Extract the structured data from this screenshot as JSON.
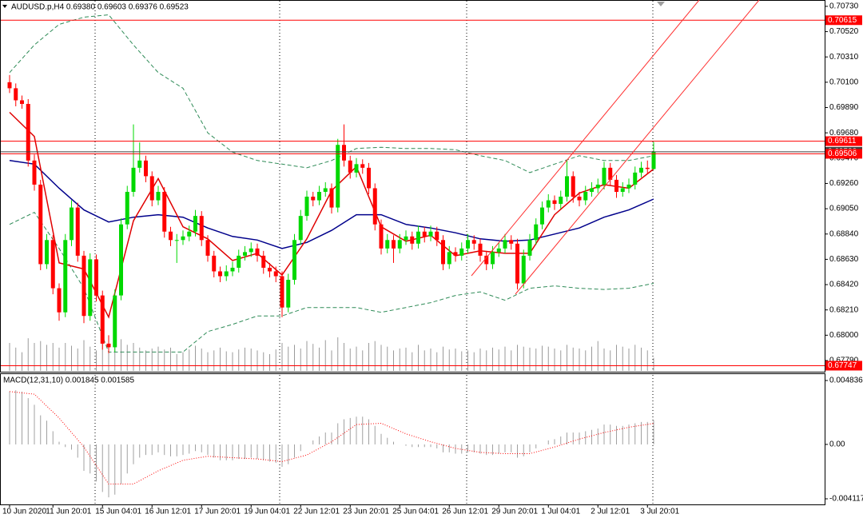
{
  "chart_data": {
    "type": "candlestick",
    "header": "AUDUSD.p,H4  0.69380 0.69603 0.69376 0.69523",
    "categories": [
      "10 Jun 2020",
      null,
      null,
      null,
      null,
      null,
      null,
      "11 Jun 20:01",
      null,
      null,
      null,
      null,
      null,
      null,
      null,
      "15 Jun 04:01",
      null,
      null,
      null,
      null,
      null,
      null,
      null,
      "16 Jun 12:01",
      null,
      null,
      null,
      null,
      null,
      null,
      null,
      "17 Jun 20:01",
      null,
      null,
      null,
      null,
      null,
      null,
      null,
      "19 Jun 04:01",
      null,
      null,
      null,
      null,
      null,
      null,
      null,
      "22 Jun 12:01",
      null,
      null,
      null,
      null,
      null,
      null,
      null,
      "23 Jun 20:01",
      null,
      null,
      null,
      null,
      null,
      null,
      null,
      "25 Jun 04:01",
      null,
      null,
      null,
      null,
      null,
      null,
      null,
      "26 Jun 12:01",
      null,
      null,
      null,
      null,
      null,
      null,
      null,
      "29 Jun 20:01",
      null,
      null,
      null,
      null,
      null,
      null,
      null,
      "1 Jul 04:01",
      null,
      null,
      null,
      null,
      null,
      null,
      null,
      "2 Jul 12:01",
      null,
      null,
      null,
      null,
      null,
      null,
      null,
      "3 Jul 20:01",
      null
    ],
    "ohlc": [
      [
        0.701,
        0.7016,
        0.7001,
        0.7005
      ],
      [
        0.7005,
        0.7009,
        0.699,
        0.6995
      ],
      [
        0.6995,
        0.6999,
        0.6988,
        0.6992
      ],
      [
        0.6992,
        0.6996,
        0.694,
        0.6945
      ],
      [
        0.6945,
        0.695,
        0.692,
        0.6925
      ],
      [
        0.6925,
        0.6929,
        0.6854,
        0.6859
      ],
      [
        0.6859,
        0.6884,
        0.6855,
        0.6879
      ],
      [
        0.6879,
        0.6883,
        0.6834,
        0.6839
      ],
      [
        0.6839,
        0.6843,
        0.6812,
        0.6819
      ],
      [
        0.6819,
        0.6884,
        0.6815,
        0.6879
      ],
      [
        0.6879,
        0.6912,
        0.6874,
        0.6906
      ],
      [
        0.6906,
        0.691,
        0.6861,
        0.6866
      ],
      [
        0.6866,
        0.687,
        0.681,
        0.6816
      ],
      [
        0.6816,
        0.6868,
        0.6812,
        0.6863
      ],
      [
        0.6863,
        0.6867,
        0.6828,
        0.6833
      ],
      [
        0.6833,
        0.6837,
        0.6788,
        0.6793
      ],
      [
        0.6793,
        0.68,
        0.6785,
        0.679
      ],
      [
        0.679,
        0.6838,
        0.6786,
        0.6833
      ],
      [
        0.6833,
        0.6897,
        0.6829,
        0.6892
      ],
      [
        0.6892,
        0.6924,
        0.6888,
        0.6919
      ],
      [
        0.6919,
        0.6975,
        0.6915,
        0.6939
      ],
      [
        0.6939,
        0.696,
        0.6935,
        0.6945
      ],
      [
        0.6945,
        0.6949,
        0.6927,
        0.6932
      ],
      [
        0.6932,
        0.6936,
        0.6907,
        0.6912
      ],
      [
        0.6912,
        0.6924,
        0.6908,
        0.6919
      ],
      [
        0.6919,
        0.6923,
        0.6881,
        0.6886
      ],
      [
        0.6886,
        0.689,
        0.6874,
        0.6879
      ],
      [
        0.6879,
        0.6884,
        0.686,
        0.6879
      ],
      [
        0.6879,
        0.6887,
        0.6875,
        0.6882
      ],
      [
        0.6882,
        0.6891,
        0.6878,
        0.6886
      ],
      [
        0.6886,
        0.6904,
        0.6882,
        0.6899
      ],
      [
        0.6899,
        0.6903,
        0.6874,
        0.6879
      ],
      [
        0.6879,
        0.6883,
        0.6861,
        0.6866
      ],
      [
        0.6866,
        0.687,
        0.6848,
        0.6853
      ],
      [
        0.6853,
        0.6857,
        0.6844,
        0.6849
      ],
      [
        0.6849,
        0.6858,
        0.6845,
        0.6853
      ],
      [
        0.6853,
        0.6861,
        0.6849,
        0.6856
      ],
      [
        0.6856,
        0.6871,
        0.6852,
        0.6866
      ],
      [
        0.6866,
        0.6874,
        0.6862,
        0.6869
      ],
      [
        0.6869,
        0.6877,
        0.6865,
        0.6872
      ],
      [
        0.6872,
        0.6876,
        0.6861,
        0.6866
      ],
      [
        0.6866,
        0.687,
        0.6851,
        0.6856
      ],
      [
        0.6856,
        0.686,
        0.6848,
        0.6853
      ],
      [
        0.6853,
        0.6857,
        0.6844,
        0.6849
      ],
      [
        0.6849,
        0.6853,
        0.6815,
        0.6823
      ],
      [
        0.6823,
        0.6851,
        0.6819,
        0.6846
      ],
      [
        0.6846,
        0.6884,
        0.6842,
        0.6879
      ],
      [
        0.6879,
        0.6904,
        0.6875,
        0.6899
      ],
      [
        0.6899,
        0.692,
        0.6895,
        0.6915
      ],
      [
        0.6915,
        0.6919,
        0.6907,
        0.6912
      ],
      [
        0.6912,
        0.6924,
        0.6908,
        0.6919
      ],
      [
        0.6919,
        0.6927,
        0.6915,
        0.6922
      ],
      [
        0.6922,
        0.6926,
        0.6901,
        0.6906
      ],
      [
        0.6906,
        0.6963,
        0.6902,
        0.6958
      ],
      [
        0.6958,
        0.6975,
        0.694,
        0.6945
      ],
      [
        0.6945,
        0.6949,
        0.693,
        0.6935
      ],
      [
        0.6935,
        0.6947,
        0.6931,
        0.6942
      ],
      [
        0.6942,
        0.6946,
        0.6934,
        0.6939
      ],
      [
        0.6939,
        0.6943,
        0.6917,
        0.6922
      ],
      [
        0.6922,
        0.6926,
        0.6887,
        0.6892
      ],
      [
        0.6892,
        0.6896,
        0.6867,
        0.6872
      ],
      [
        0.6872,
        0.6884,
        0.6868,
        0.6879
      ],
      [
        0.6879,
        0.6883,
        0.686,
        0.6872
      ],
      [
        0.6872,
        0.6884,
        0.6868,
        0.6879
      ],
      [
        0.6879,
        0.6887,
        0.6875,
        0.6882
      ],
      [
        0.6882,
        0.6886,
        0.6871,
        0.6876
      ],
      [
        0.6876,
        0.6891,
        0.6872,
        0.6886
      ],
      [
        0.6886,
        0.689,
        0.6877,
        0.6882
      ],
      [
        0.6882,
        0.6891,
        0.6878,
        0.6886
      ],
      [
        0.6886,
        0.689,
        0.6874,
        0.6879
      ],
      [
        0.6879,
        0.6883,
        0.6854,
        0.6859
      ],
      [
        0.6859,
        0.6874,
        0.6855,
        0.6869
      ],
      [
        0.6869,
        0.6873,
        0.6861,
        0.6866
      ],
      [
        0.6866,
        0.6877,
        0.6862,
        0.6872
      ],
      [
        0.6872,
        0.6884,
        0.6868,
        0.6879
      ],
      [
        0.6879,
        0.6883,
        0.6871,
        0.6876
      ],
      [
        0.6876,
        0.688,
        0.6861,
        0.6866
      ],
      [
        0.6866,
        0.687,
        0.6854,
        0.6859
      ],
      [
        0.6859,
        0.6874,
        0.6855,
        0.6869
      ],
      [
        0.6869,
        0.6877,
        0.6865,
        0.6872
      ],
      [
        0.6872,
        0.6884,
        0.6868,
        0.6879
      ],
      [
        0.6879,
        0.6883,
        0.6871,
        0.6876
      ],
      [
        0.6876,
        0.688,
        0.6838,
        0.6843
      ],
      [
        0.6843,
        0.6871,
        0.6839,
        0.6866
      ],
      [
        0.6866,
        0.6884,
        0.6862,
        0.6879
      ],
      [
        0.6879,
        0.6897,
        0.6875,
        0.6892
      ],
      [
        0.6892,
        0.6911,
        0.6888,
        0.6906
      ],
      [
        0.6906,
        0.6917,
        0.6902,
        0.6912
      ],
      [
        0.6912,
        0.6916,
        0.6904,
        0.6909
      ],
      [
        0.6909,
        0.692,
        0.6905,
        0.6915
      ],
      [
        0.6915,
        0.6945,
        0.6911,
        0.6932
      ],
      [
        0.6932,
        0.6936,
        0.691,
        0.6915
      ],
      [
        0.6915,
        0.6919,
        0.6907,
        0.6912
      ],
      [
        0.6912,
        0.6924,
        0.6908,
        0.6919
      ],
      [
        0.6919,
        0.6927,
        0.6915,
        0.6922
      ],
      [
        0.6922,
        0.693,
        0.6918,
        0.6925
      ],
      [
        0.6925,
        0.6944,
        0.6921,
        0.6939
      ],
      [
        0.6939,
        0.6943,
        0.6924,
        0.6929
      ],
      [
        0.6929,
        0.6933,
        0.6914,
        0.6919
      ],
      [
        0.6919,
        0.6927,
        0.6915,
        0.6922
      ],
      [
        0.6922,
        0.693,
        0.6918,
        0.6925
      ],
      [
        0.6925,
        0.694,
        0.6921,
        0.6935
      ],
      [
        0.6935,
        0.6944,
        0.6931,
        0.6939
      ],
      [
        0.6939,
        0.6945,
        0.6934,
        0.6938
      ],
      [
        0.6938,
        0.69603,
        0.69376,
        0.69523
      ]
    ],
    "up_color": "#00d800",
    "down_color": "#ff0000",
    "ylim": [
      0.67697,
      0.70776
    ],
    "yticks": [
      {
        "value": 0.7073,
        "label": "0.70730"
      },
      {
        "value": 0.7052,
        "label": "0.70520"
      },
      {
        "value": 0.7031,
        "label": "0.70310"
      },
      {
        "value": 0.701,
        "label": "0.70100"
      },
      {
        "value": 0.6989,
        "label": "0.69890"
      },
      {
        "value": 0.6968,
        "label": "0.69680"
      },
      {
        "value": 0.6947,
        "label": "0.69470"
      },
      {
        "value": 0.6926,
        "label": "0.69260"
      },
      {
        "value": 0.6905,
        "label": "0.69050"
      },
      {
        "value": 0.6884,
        "label": "0.68840"
      },
      {
        "value": 0.6863,
        "label": "0.68630"
      },
      {
        "value": 0.6842,
        "label": "0.68420"
      },
      {
        "value": 0.6821,
        "label": "0.68210"
      },
      {
        "value": 0.68,
        "label": "0.68000"
      },
      {
        "value": 0.6779,
        "label": "0.67790"
      }
    ],
    "price_levels": [
      {
        "value": 0.70615,
        "color": "#ff0000"
      },
      {
        "value": 0.69611,
        "color": "#ff0000"
      },
      {
        "value": 0.69523,
        "color": "#404040"
      },
      {
        "value": 0.69506,
        "color": "#ff0000"
      },
      {
        "value": 0.67747,
        "color": "#ff0000"
      }
    ],
    "overlay_x": [
      0,
      4,
      8,
      12,
      16,
      20,
      24,
      28,
      32,
      36,
      40,
      44,
      48,
      52,
      56,
      60,
      64,
      68,
      72,
      76,
      80,
      84,
      88,
      92,
      96,
      100,
      104
    ],
    "overlays": [
      {
        "color": "#2e8b57",
        "dash": true,
        "values": [
          0.7018,
          0.7041,
          0.7058,
          0.7064,
          0.7066,
          0.7041,
          0.7018,
          0.7005,
          0.6968,
          0.6952,
          0.6945,
          0.6942,
          0.6939,
          0.6945,
          0.6955,
          0.6956,
          0.6955,
          0.6955,
          0.6954,
          0.6949,
          0.6945,
          0.6935,
          0.6942,
          0.6949,
          0.6945,
          0.6945,
          0.6949
        ]
      },
      {
        "color": "#2e8b57",
        "dash": true,
        "values": [
          0.6892,
          0.6902,
          0.6872,
          0.6839,
          0.6786,
          0.6786,
          0.6786,
          0.6786,
          0.6803,
          0.6809,
          0.6816,
          0.6816,
          0.6823,
          0.6823,
          0.6823,
          0.6819,
          0.6823,
          0.6827,
          0.6833,
          0.6836,
          0.6829,
          0.6839,
          0.6841,
          0.6839,
          0.6838,
          0.6839,
          0.6843
        ]
      },
      {
        "color": "#00008b",
        "dash": false,
        "values": [
          0.6945,
          0.6942,
          0.6922,
          0.6904,
          0.6894,
          0.6898,
          0.69,
          0.6898,
          0.6889,
          0.6882,
          0.6879,
          0.6872,
          0.6877,
          0.6887,
          0.69,
          0.69,
          0.6892,
          0.6889,
          0.6885,
          0.688,
          0.6878,
          0.6879,
          0.6884,
          0.6889,
          0.6898,
          0.6904,
          0.6913
        ]
      },
      {
        "color": "#e00000",
        "dash": false,
        "values": [
          0.6985,
          0.6965,
          0.686,
          0.6855,
          0.6815,
          0.6895,
          0.693,
          0.689,
          0.688,
          0.6862,
          0.6868,
          0.685,
          0.688,
          0.692,
          0.694,
          0.689,
          0.6878,
          0.6883,
          0.6866,
          0.687,
          0.6868,
          0.6868,
          0.69,
          0.6918,
          0.6925,
          0.6922,
          0.6938
        ]
      }
    ],
    "volume": {
      "color": "#9a9a9a",
      "lim": [
        0,
        12
      ],
      "values": [
        3,
        2.5,
        2,
        3.5,
        3,
        3.2,
        2.8,
        3,
        2.5,
        3,
        2.7,
        2.4,
        3.3,
        2.6,
        2.2,
        3.5,
        3.1,
        2.6,
        3.4,
        2.8,
        3,
        2.5,
        2.2,
        2.4,
        2.6,
        2.3,
        2.5,
        1.8,
        2,
        2.3,
        2.7,
        2.4,
        2,
        2.2,
        2.5,
        2.1,
        2,
        2.3,
        2.5,
        2.4,
        2.2,
        2,
        1.8,
        2.3,
        3,
        2.6,
        2.8,
        2.4,
        3.2,
        2.9,
        2.5,
        3.3,
        2.2,
        3.6,
        3,
        2.4,
        2.6,
        2.2,
        3,
        3.2,
        2.8,
        2.6,
        2.2,
        2.4,
        2.5,
        2,
        2.8,
        2.2,
        2.4,
        2,
        2.6,
        2.3,
        2.4,
        2.1,
        2.2,
        2,
        2.4,
        2.2,
        2.5,
        2.3,
        2.6,
        2.2,
        2.8,
        2.6,
        2.5,
        2.4,
        2.7,
        2.6,
        2.4,
        2.2,
        2.8,
        2.5,
        2.4,
        2.2,
        2.6,
        3.2,
        2.4,
        2.2,
        2.8,
        2.6,
        2.4,
        2.8,
        2.5,
        2.2,
        1.4
      ]
    },
    "macd": {
      "title": "MACD(12,31,10) 0.001845 0.001585",
      "ylim": [
        -0.004601,
        0.00532
      ],
      "yticks": [
        0.004836,
        {
          "value": 0,
          "label": "0.00"
        },
        -0.004117
      ],
      "histogram_color": "#a0a0a0",
      "histogram": [
        0.004,
        0.0041,
        0.004,
        0.0035,
        0.003,
        0.0022,
        0.0018,
        0.001,
        0.0002,
        -0.0002,
        -0.0004,
        -0.001,
        -0.002,
        -0.0022,
        -0.0028,
        -0.0036,
        -0.004,
        -0.0038,
        -0.003,
        -0.0022,
        -0.0015,
        -0.001,
        -0.0008,
        -0.0008,
        -0.0006,
        -0.0008,
        -0.0009,
        -0.0009,
        -0.0008,
        -0.0007,
        -0.0005,
        -0.0006,
        -0.0008,
        -0.001,
        -0.0012,
        -0.0012,
        -0.0012,
        -0.0011,
        -0.0011,
        -0.001,
        -0.0011,
        -0.0012,
        -0.0013,
        -0.0014,
        -0.0017,
        -0.0015,
        -0.001,
        -0.0005,
        0,
        0.0003,
        0.0006,
        0.0009,
        0.0009,
        0.0016,
        0.0019,
        0.002,
        0.0021,
        0.0021,
        0.0019,
        0.0014,
        0.0008,
        0.0005,
        0.0002,
        0,
        -0.0001,
        -0.0002,
        -0.0002,
        -0.0002,
        -0.0002,
        -0.0003,
        -0.0006,
        -0.0006,
        -0.0007,
        -0.0007,
        -0.0006,
        -0.0006,
        -0.0007,
        -0.0008,
        -0.0008,
        -0.0007,
        -0.0006,
        -0.0006,
        -0.001,
        -0.0009,
        -0.0006,
        -0.0003,
        0,
        0.0003,
        0.0004,
        0.0006,
        0.0009,
        0.0009,
        0.0009,
        0.001,
        0.0011,
        0.0012,
        0.0015,
        0.0015,
        0.0014,
        0.0014,
        0.0015,
        0.0016,
        0.0017,
        0.0017,
        0.001845
      ],
      "signal_color": "#ff0000",
      "signal": [
        0.004,
        0.0038,
        0.002,
        -0.0002,
        -0.003,
        -0.003,
        -0.002,
        -0.0012,
        -0.0009,
        -0.001,
        -0.0011,
        -0.0013,
        -0.0008,
        0.0002,
        0.0015,
        0.0016,
        0.0008,
        0.0002,
        -0.0003,
        -0.0006,
        -0.0007,
        -0.0007,
        -0.0002,
        0.0004,
        0.0009,
        0.0013,
        0.001585
      ]
    }
  }
}
